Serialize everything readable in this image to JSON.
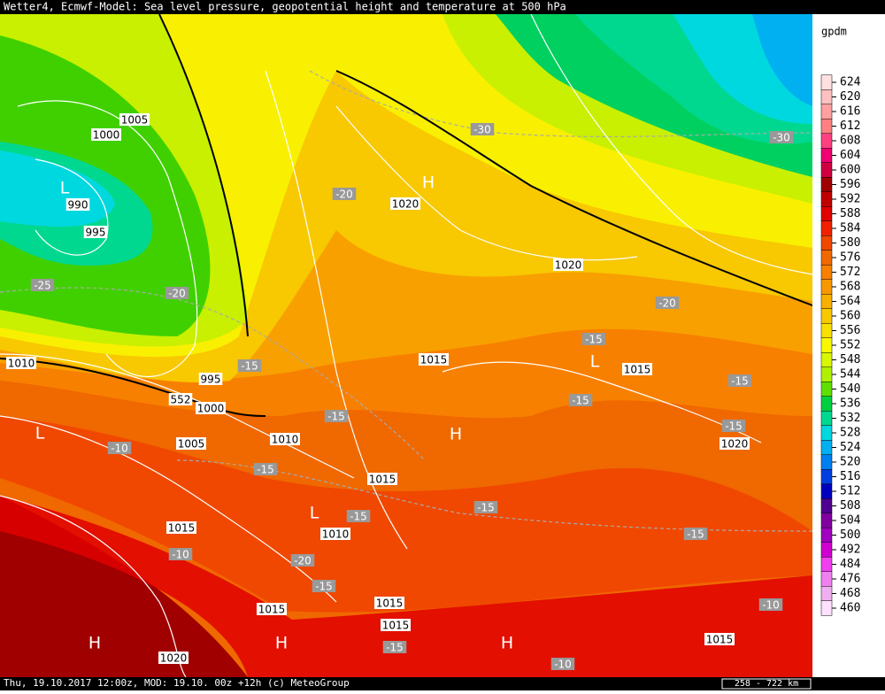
{
  "header": {
    "title": "Wetter4, Ecmwf-Model: Sea level pressure, geopotential height and temperature at 500 hPa"
  },
  "map": {
    "pressure_labels": [
      "1005",
      "1000",
      "990",
      "995",
      "1010",
      "995",
      "1000",
      "552",
      "1005",
      "1010",
      "1020",
      "1020",
      "1015",
      "1015",
      "1020",
      "1015",
      "1015",
      "1010",
      "1015",
      "1015",
      "1015",
      "1020",
      "1015"
    ],
    "temperature_labels": [
      "-30",
      "-30",
      "-20",
      "-25",
      "-20",
      "-20",
      "-15",
      "-15",
      "-15",
      "-15",
      "-15",
      "-15",
      "-10",
      "-15",
      "-15",
      "-15",
      "-15",
      "-10",
      "-20",
      "-15",
      "-10",
      "-15",
      "-10"
    ],
    "centers": [
      "L",
      "H",
      "L",
      "L",
      "H",
      "L",
      "H",
      "H",
      "H"
    ]
  },
  "legend": {
    "unit": "gpdm",
    "levels": [
      624,
      620,
      616,
      612,
      608,
      604,
      600,
      596,
      592,
      588,
      584,
      580,
      576,
      572,
      568,
      564,
      560,
      556,
      552,
      548,
      544,
      540,
      536,
      532,
      528,
      524,
      520,
      516,
      512,
      508,
      504,
      500,
      492,
      484,
      476,
      468,
      460
    ],
    "colors": [
      "#ffe0e0",
      "#ffc0c0",
      "#ffa0a0",
      "#ff8080",
      "#ff4080",
      "#f00070",
      "#d00040",
      "#a00000",
      "#c00000",
      "#e00000",
      "#f02000",
      "#f04800",
      "#f06800",
      "#f88000",
      "#f89800",
      "#f8b000",
      "#f8c800",
      "#f8e000",
      "#f8f800",
      "#d8f800",
      "#b0f000",
      "#60e000",
      "#00d040",
      "#00d890",
      "#00d8e0",
      "#00b0f0",
      "#0080f0",
      "#0040e0",
      "#0000c0",
      "#500090",
      "#8000a0",
      "#a000c0",
      "#d000d0",
      "#f040f0",
      "#f080f0",
      "#f0b0f0",
      "#ffe0ff"
    ]
  },
  "footer": {
    "info": "Thu, 19.10.2017 12:00z, MOD: 19.10. 00z +12h (c) MeteoGroup",
    "scale": "258 - 722 km"
  }
}
